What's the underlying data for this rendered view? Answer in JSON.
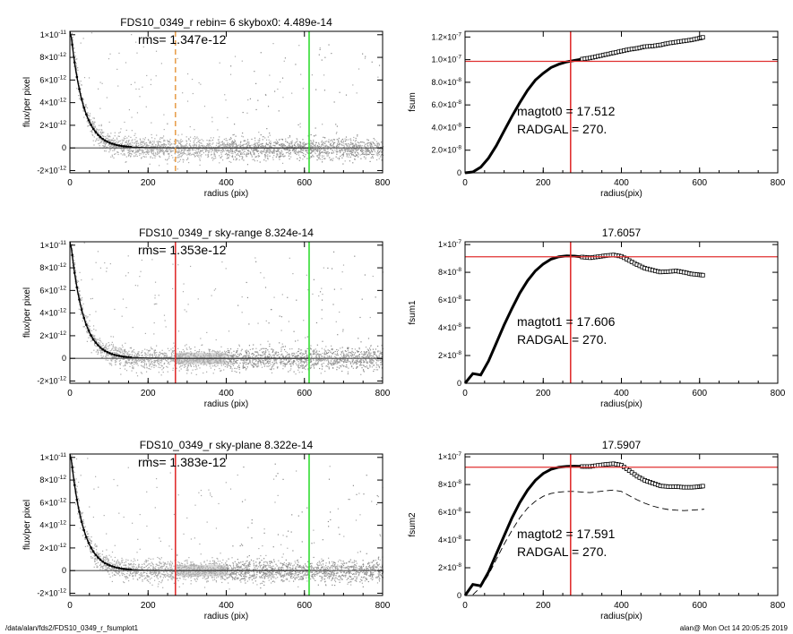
{
  "figure": {
    "footer_left": "/data/alan/fds2/FDS10_0349_r_fsumplot1",
    "footer_right": "alan@  Mon Oct 14 20:05:25 2019"
  },
  "chart_data": [
    {
      "type": "scatter",
      "title": "FDS10_0349_r rebin= 6    skybox0:  4.489e-14",
      "xlabel": "radius (pix)",
      "ylabel": "flux/per pixel",
      "xlim": [
        0,
        800
      ],
      "ylim": [
        -2.2e-12,
        1.03e-11
      ],
      "xticks": [
        "0",
        "200",
        "400",
        "600",
        "800"
      ],
      "yticks": [
        {
          "v": 1e-11,
          "m": "1×10",
          "e": "-11"
        },
        {
          "v": 8e-12,
          "m": "8×10",
          "e": "-12"
        },
        {
          "v": 6e-12,
          "m": "6×10",
          "e": "-12"
        },
        {
          "v": 4e-12,
          "m": "4×10",
          "e": "-12"
        },
        {
          "v": 2e-12,
          "m": "2×10",
          "e": "-12"
        },
        {
          "v": 0,
          "m": "0",
          "e": ""
        },
        {
          "v": -2e-12,
          "m": "-2×10",
          "e": "-12"
        }
      ],
      "annotation": "rms= 1.347e-12",
      "profile": {
        "amplitude": 1.1e-11,
        "scale_pix": 32,
        "rms": 1.347e-12
      },
      "vlines": [
        {
          "x": 270,
          "color": "#e8a050",
          "dashed": true
        },
        {
          "x": 612,
          "color": "#33dd33",
          "dashed": false
        }
      ],
      "shading": "rebin"
    },
    {
      "type": "line",
      "title": "",
      "xlabel": "radius(pix)",
      "ylabel": "fsum",
      "xlim": [
        0,
        800
      ],
      "ylim": [
        0,
        1.25e-07
      ],
      "xticks": [
        "0",
        "200",
        "400",
        "600",
        "800"
      ],
      "yticks": [
        {
          "v": 1.2e-07,
          "m": "1.2×10",
          "e": "-7"
        },
        {
          "v": 1e-07,
          "m": "1.0×10",
          "e": "-7"
        },
        {
          "v": 8e-08,
          "m": "8.0×10",
          "e": "-8"
        },
        {
          "v": 6e-08,
          "m": "6.0×10",
          "e": "-8"
        },
        {
          "v": 4e-08,
          "m": "4.0×10",
          "e": "-8"
        },
        {
          "v": 2e-08,
          "m": "2.0×10",
          "e": "-8"
        },
        {
          "v": 0,
          "m": "0",
          "e": ""
        }
      ],
      "text_lines": [
        "magtot0 =  17.512",
        "RADGAL =    270."
      ],
      "curve": {
        "x": [
          0,
          20,
          40,
          60,
          80,
          100,
          120,
          140,
          160,
          180,
          200,
          220,
          240,
          260,
          280,
          300,
          320,
          340,
          360,
          380,
          400,
          420,
          440,
          460,
          480,
          500,
          520,
          540,
          560,
          580,
          600,
          612
        ],
        "y": [
          0,
          8e-10,
          5e-09,
          1.3e-08,
          2.4e-08,
          3.7e-08,
          5e-08,
          6.2e-08,
          7.3e-08,
          8.2e-08,
          8.8e-08,
          9.3e-08,
          9.6e-08,
          9.8e-08,
          9.93e-08,
          1.005e-07,
          1.015e-07,
          1.03e-07,
          1.045e-07,
          1.06e-07,
          1.075e-07,
          1.09e-07,
          1.1e-07,
          1.115e-07,
          1.12e-07,
          1.13e-07,
          1.145e-07,
          1.155e-07,
          1.165e-07,
          1.175e-07,
          1.19e-07,
          1.2e-07
        ]
      },
      "dashed_curve": null,
      "hline": 9.85e-08,
      "vline": 270
    },
    {
      "type": "scatter",
      "title": "FDS10_0349_r sky-range  8.324e-14",
      "xlabel": "radius (pix)",
      "ylabel": "flux/per pixel",
      "xlim": [
        0,
        800
      ],
      "ylim": [
        -2.2e-12,
        1.03e-11
      ],
      "xticks": [
        "0",
        "200",
        "400",
        "600",
        "800"
      ],
      "yticks": [
        {
          "v": 1e-11,
          "m": "1×10",
          "e": "-11"
        },
        {
          "v": 8e-12,
          "m": "8×10",
          "e": "-12"
        },
        {
          "v": 6e-12,
          "m": "6×10",
          "e": "-12"
        },
        {
          "v": 4e-12,
          "m": "4×10",
          "e": "-12"
        },
        {
          "v": 2e-12,
          "m": "2×10",
          "e": "-12"
        },
        {
          "v": 0,
          "m": "0",
          "e": ""
        },
        {
          "v": -2e-12,
          "m": "-2×10",
          "e": "-12"
        }
      ],
      "annotation": "rms= 1.353e-12",
      "profile": {
        "amplitude": 1.1e-11,
        "scale_pix": 32,
        "rms": 1.353e-12
      },
      "vlines": [
        {
          "x": 270,
          "color": "#e03030",
          "dashed": false
        },
        {
          "x": 612,
          "color": "#33dd33",
          "dashed": false
        }
      ],
      "shading": "range"
    },
    {
      "type": "line",
      "title": "17.6057",
      "xlabel": "radius(pix)",
      "ylabel": "fsum1",
      "xlim": [
        0,
        800
      ],
      "ylim": [
        0,
        1.02e-07
      ],
      "xticks": [
        "0",
        "200",
        "400",
        "600",
        "800"
      ],
      "yticks": [
        {
          "v": 1e-07,
          "m": "1×10",
          "e": "-7"
        },
        {
          "v": 8e-08,
          "m": "8×10",
          "e": "-8"
        },
        {
          "v": 6e-08,
          "m": "6×10",
          "e": "-8"
        },
        {
          "v": 4e-08,
          "m": "4×10",
          "e": "-8"
        },
        {
          "v": 2e-08,
          "m": "2×10",
          "e": "-8"
        },
        {
          "v": 0,
          "m": "0",
          "e": ""
        }
      ],
      "text_lines": [
        "magtot1 =  17.606",
        "RADGAL =    270."
      ],
      "curve": {
        "x": [
          0,
          20,
          40,
          60,
          80,
          100,
          120,
          140,
          160,
          180,
          200,
          220,
          240,
          260,
          280,
          300,
          320,
          340,
          360,
          380,
          400,
          420,
          440,
          460,
          480,
          500,
          520,
          540,
          560,
          580,
          600,
          612
        ],
        "y": [
          0,
          7e-09,
          6e-09,
          1.6e-08,
          2.9e-08,
          4.2e-08,
          5.4e-08,
          6.5e-08,
          7.4e-08,
          8.1e-08,
          8.6e-08,
          8.95e-08,
          9.12e-08,
          9.18e-08,
          9.17e-08,
          9.1e-08,
          9.05e-08,
          9.12e-08,
          9.2e-08,
          9.25e-08,
          9.15e-08,
          8.85e-08,
          8.55e-08,
          8.3e-08,
          8.15e-08,
          8.02e-08,
          8.05e-08,
          8.1e-08,
          8e-08,
          7.88e-08,
          7.82e-08,
          7.78e-08
        ]
      },
      "dashed_curve": null,
      "hline": 9.12e-08,
      "vline": 270
    },
    {
      "type": "scatter",
      "title": "FDS10_0349_r sky-plane  8.322e-14",
      "xlabel": "radius (pix)",
      "ylabel": "flux/per pixel",
      "xlim": [
        0,
        800
      ],
      "ylim": [
        -2.2e-12,
        1.03e-11
      ],
      "xticks": [
        "0",
        "200",
        "400",
        "600",
        "800"
      ],
      "yticks": [
        {
          "v": 1e-11,
          "m": "1×10",
          "e": "-11"
        },
        {
          "v": 8e-12,
          "m": "8×10",
          "e": "-12"
        },
        {
          "v": 6e-12,
          "m": "6×10",
          "e": "-12"
        },
        {
          "v": 4e-12,
          "m": "4×10",
          "e": "-12"
        },
        {
          "v": 2e-12,
          "m": "2×10",
          "e": "-12"
        },
        {
          "v": 0,
          "m": "0",
          "e": ""
        },
        {
          "v": -2e-12,
          "m": "-2×10",
          "e": "-12"
        }
      ],
      "annotation": "rms= 1.383e-12",
      "profile": {
        "amplitude": 1.1e-11,
        "scale_pix": 32,
        "rms": 1.383e-12
      },
      "vlines": [
        {
          "x": 270,
          "color": "#e03030",
          "dashed": false
        },
        {
          "x": 612,
          "color": "#33dd33",
          "dashed": false
        }
      ],
      "shading": "range"
    },
    {
      "type": "line",
      "title": "17.5907",
      "xlabel": "radius(pix)",
      "ylabel": "fsum2",
      "xlim": [
        0,
        800
      ],
      "ylim": [
        0,
        1.02e-07
      ],
      "xticks": [
        "0",
        "200",
        "400",
        "600",
        "800"
      ],
      "yticks": [
        {
          "v": 1e-07,
          "m": "1×10",
          "e": "-7"
        },
        {
          "v": 8e-08,
          "m": "8×10",
          "e": "-8"
        },
        {
          "v": 6e-08,
          "m": "6×10",
          "e": "-8"
        },
        {
          "v": 4e-08,
          "m": "4×10",
          "e": "-8"
        },
        {
          "v": 2e-08,
          "m": "2×10",
          "e": "-8"
        },
        {
          "v": 0,
          "m": "0",
          "e": ""
        }
      ],
      "text_lines": [
        "magtot2 =  17.591",
        "RADGAL =    270."
      ],
      "curve": {
        "x": [
          0,
          20,
          40,
          60,
          80,
          100,
          120,
          140,
          160,
          180,
          200,
          220,
          240,
          260,
          280,
          300,
          320,
          340,
          360,
          380,
          400,
          420,
          440,
          460,
          480,
          500,
          520,
          540,
          560,
          580,
          600,
          612
        ],
        "y": [
          0,
          8e-09,
          7e-09,
          1.7e-08,
          3e-08,
          4.3e-08,
          5.6e-08,
          6.7e-08,
          7.6e-08,
          8.3e-08,
          8.8e-08,
          9.1e-08,
          9.25e-08,
          9.3e-08,
          9.32e-08,
          9.3e-08,
          9.3e-08,
          9.38e-08,
          9.45e-08,
          9.5e-08,
          9.4e-08,
          9e-08,
          8.6e-08,
          8.3e-08,
          8.1e-08,
          7.9e-08,
          7.85e-08,
          7.85e-08,
          7.8e-08,
          7.8e-08,
          7.85e-08,
          7.9e-08
        ]
      },
      "dashed_curve": {
        "x": [
          20,
          40,
          60,
          80,
          100,
          120,
          140,
          160,
          180,
          200,
          220,
          240,
          260,
          280,
          300,
          320,
          340,
          360,
          380,
          400,
          420,
          440,
          460,
          480,
          500,
          520,
          540,
          560,
          580,
          600,
          612
        ],
        "y": [
          5e-10,
          6e-09,
          1.5e-08,
          2.6e-08,
          3.7e-08,
          4.7e-08,
          5.6e-08,
          6.3e-08,
          6.8e-08,
          7.15e-08,
          7.35e-08,
          7.45e-08,
          7.5e-08,
          7.5e-08,
          7.45e-08,
          7.42e-08,
          7.48e-08,
          7.55e-08,
          7.6e-08,
          7.5e-08,
          7.2e-08,
          6.9e-08,
          6.65e-08,
          6.45e-08,
          6.3e-08,
          6.2e-08,
          6.15e-08,
          6.12e-08,
          6.15e-08,
          6.2e-08,
          6.22e-08
        ]
      },
      "hline": 9.25e-08,
      "vline": 270
    }
  ]
}
